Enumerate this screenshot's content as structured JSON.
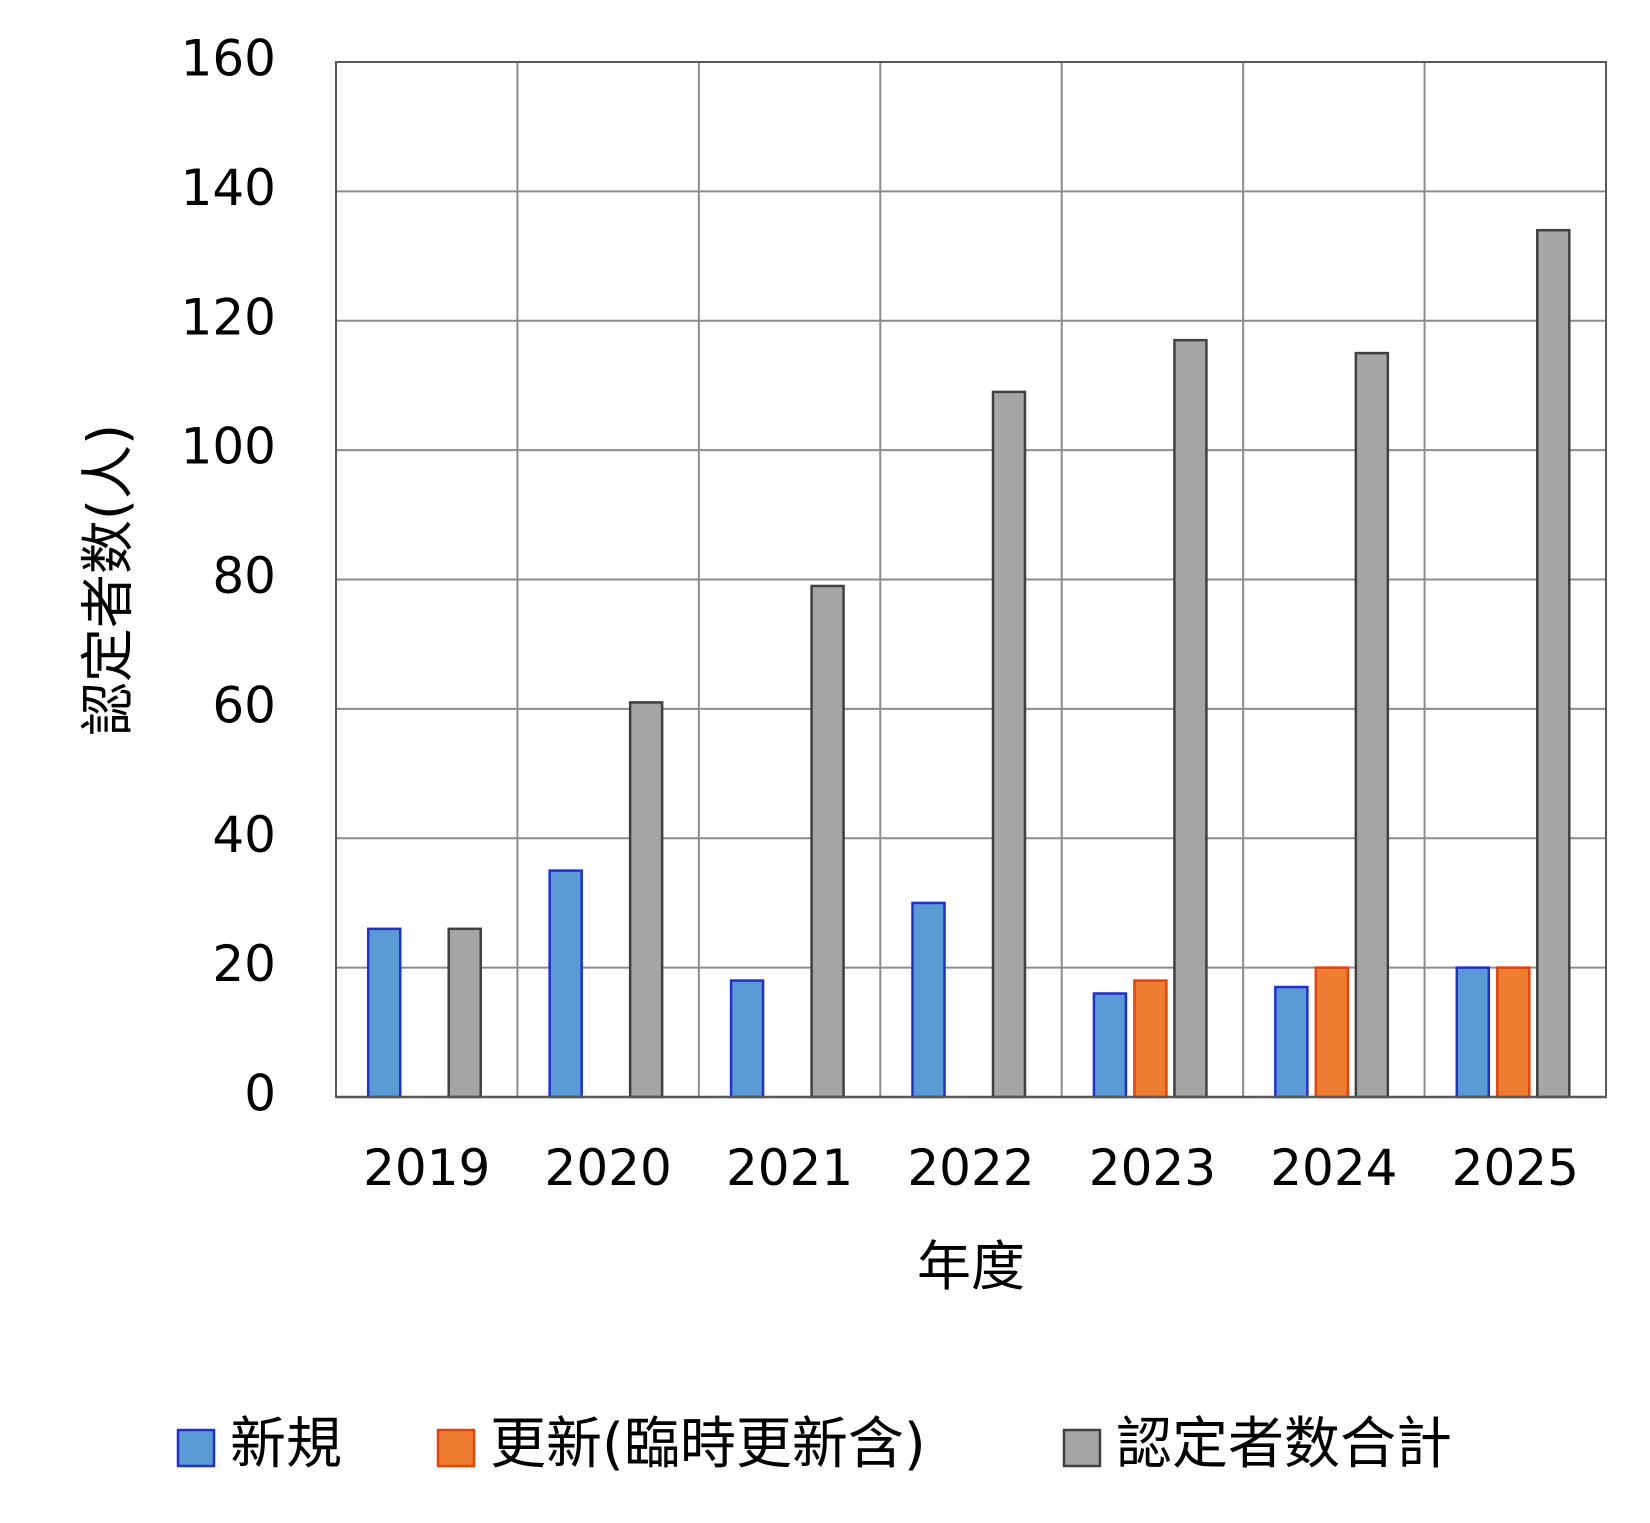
{
  "chart_data": {
    "type": "bar",
    "title": "",
    "xlabel": "年度",
    "ylabel": "認定者数(人)",
    "ylim": [
      0,
      160
    ],
    "yticks": [
      0,
      20,
      40,
      60,
      80,
      100,
      120,
      140,
      160
    ],
    "categories": [
      "2019",
      "2020",
      "2021",
      "2022",
      "2023",
      "2024",
      "2025"
    ],
    "grid": true,
    "legend_position": "bottom",
    "series": [
      {
        "name": "新規",
        "color": "#5B9BD5",
        "edge": "#1F2FD0",
        "values": [
          26,
          35,
          18,
          30,
          16,
          17,
          20
        ]
      },
      {
        "name": "更新(臨時更新含)",
        "color": "#ED7D31",
        "edge": "#E8420A",
        "values": [
          null,
          null,
          null,
          null,
          18,
          20,
          20
        ]
      },
      {
        "name": "認定者数合計",
        "color": "#A5A5A5",
        "edge": "#404040",
        "values": [
          26,
          61,
          79,
          109,
          117,
          115,
          134
        ]
      }
    ]
  }
}
